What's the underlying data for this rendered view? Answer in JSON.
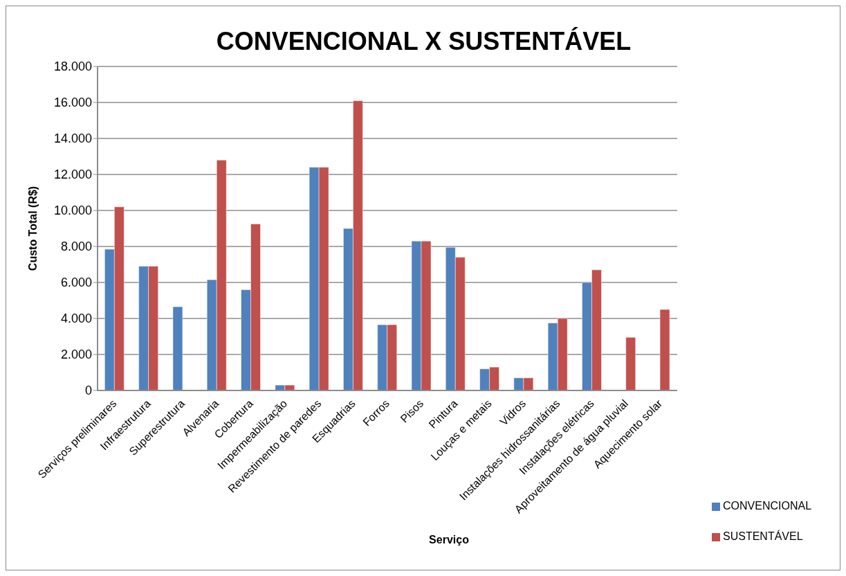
{
  "chart_data": {
    "type": "bar",
    "title": "CONVENCIONAL X SUSTENTÁVEL",
    "xlabel": "Serviço",
    "ylabel": "Custo Total (R$)",
    "categories": [
      "Serviços preliminares",
      "Infraestrutura",
      "Superestrutura",
      "Alvenaria",
      "Cobertura",
      "Impermeabilização",
      "Revestimento de paredes",
      "Esquadrias",
      "Forros",
      "Pisos",
      "Pintura",
      "Louças e metais",
      "Vidros",
      "Instalações hidrossanitárias",
      "Instalações elétricas",
      "Aproveitamento de água pluvial",
      "Aquecimento solar"
    ],
    "series": [
      {
        "name": "CONVENCIONAL",
        "color": "#4f81bd",
        "values": [
          7850,
          6900,
          4650,
          6150,
          5600,
          300,
          12400,
          9000,
          3650,
          8300,
          7950,
          1200,
          700,
          3750,
          6000,
          null,
          null
        ]
      },
      {
        "name": "SUSTENTÁVEL",
        "color": "#c0504d",
        "values": [
          10200,
          6900,
          null,
          12800,
          9250,
          300,
          12400,
          16100,
          3650,
          8300,
          7400,
          1300,
          700,
          4000,
          6700,
          2950,
          4500
        ]
      }
    ],
    "ylim": [
      0,
      18000
    ],
    "yticks": [
      0,
      {
        "value": 2000,
        "label": "2.000"
      },
      {
        "value": 4000,
        "label": "4.000"
      },
      {
        "value": 6000,
        "label": "6.000"
      },
      {
        "value": 8000,
        "label": "8.000"
      },
      {
        "value": 10000,
        "label": "10.000"
      },
      {
        "value": 12000,
        "label": "12.000"
      },
      {
        "value": 14000,
        "label": "14.000"
      },
      {
        "value": 16000,
        "label": "16.000"
      },
      {
        "value": 18000,
        "label": "18.000"
      }
    ],
    "grid": "y",
    "legend": "bottom right"
  }
}
